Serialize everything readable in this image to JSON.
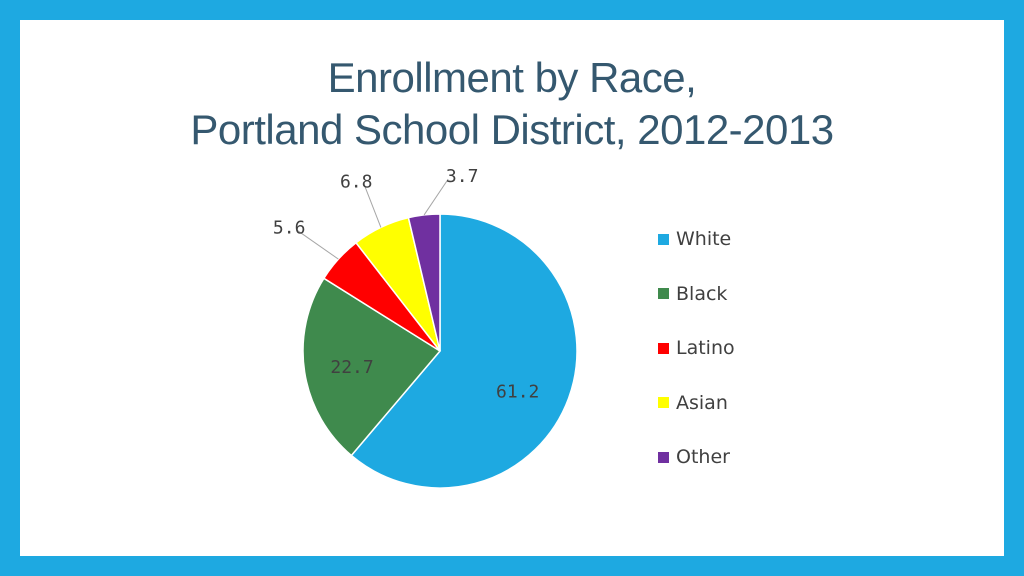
{
  "slide": {
    "border_color": "#1ea9e1",
    "title_line1": "Enrollment by Race,",
    "title_line2": "Portland School District, 2012-2013"
  },
  "chart_data": {
    "type": "pie",
    "categories": [
      "White",
      "Black",
      "Latino",
      "Asian",
      "Other"
    ],
    "values": [
      61.2,
      22.7,
      5.6,
      6.8,
      3.7
    ],
    "value_labels": [
      "61.2",
      "22.7",
      "5.6",
      "6.8",
      "3.7"
    ],
    "colors": [
      "#1ea9e1",
      "#3f8a4d",
      "#ff0000",
      "#ffff00",
      "#7030a0"
    ],
    "legend_position": "right"
  }
}
